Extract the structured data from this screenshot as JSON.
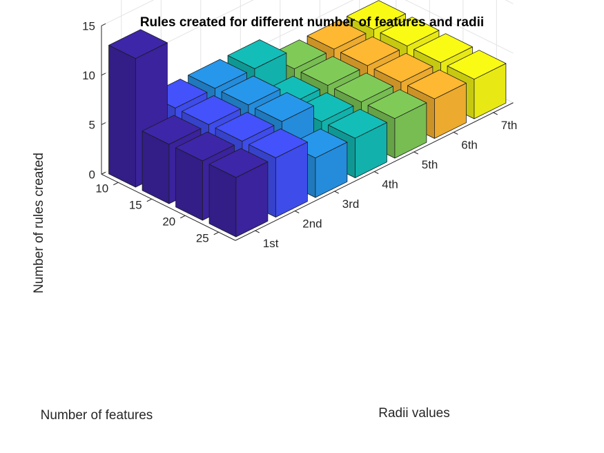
{
  "chart_data": {
    "type": "bar3d",
    "title": "Rules created for different number of features and radii",
    "xlabel": "Radii values",
    "ylabel": "Number of features",
    "zlabel": "Number of rules created",
    "radii": [
      "1st",
      "2nd",
      "3rd",
      "4th",
      "5th",
      "6th",
      "7th"
    ],
    "features": [
      "10",
      "15",
      "20",
      "25"
    ],
    "zticks": [
      "0",
      "5",
      "10",
      "15"
    ],
    "zlim": [
      0,
      15
    ],
    "grid": true,
    "series": [
      {
        "values": [
          13,
          6,
          6,
          6
        ]
      },
      {
        "values": [
          6,
          6,
          6,
          6
        ]
      },
      {
        "values": [
          6,
          6,
          6,
          4
        ]
      },
      {
        "values": [
          6,
          4,
          4,
          4
        ]
      },
      {
        "values": [
          4,
          4,
          4,
          4
        ]
      },
      {
        "values": [
          4,
          4,
          4,
          4
        ]
      },
      {
        "values": [
          4,
          4,
          4,
          4
        ]
      }
    ],
    "colors": [
      "#3e26a8",
      "#4352fb",
      "#2797eb",
      "#13beb8",
      "#80cb58",
      "#feb831",
      "#f9fb15"
    ]
  }
}
